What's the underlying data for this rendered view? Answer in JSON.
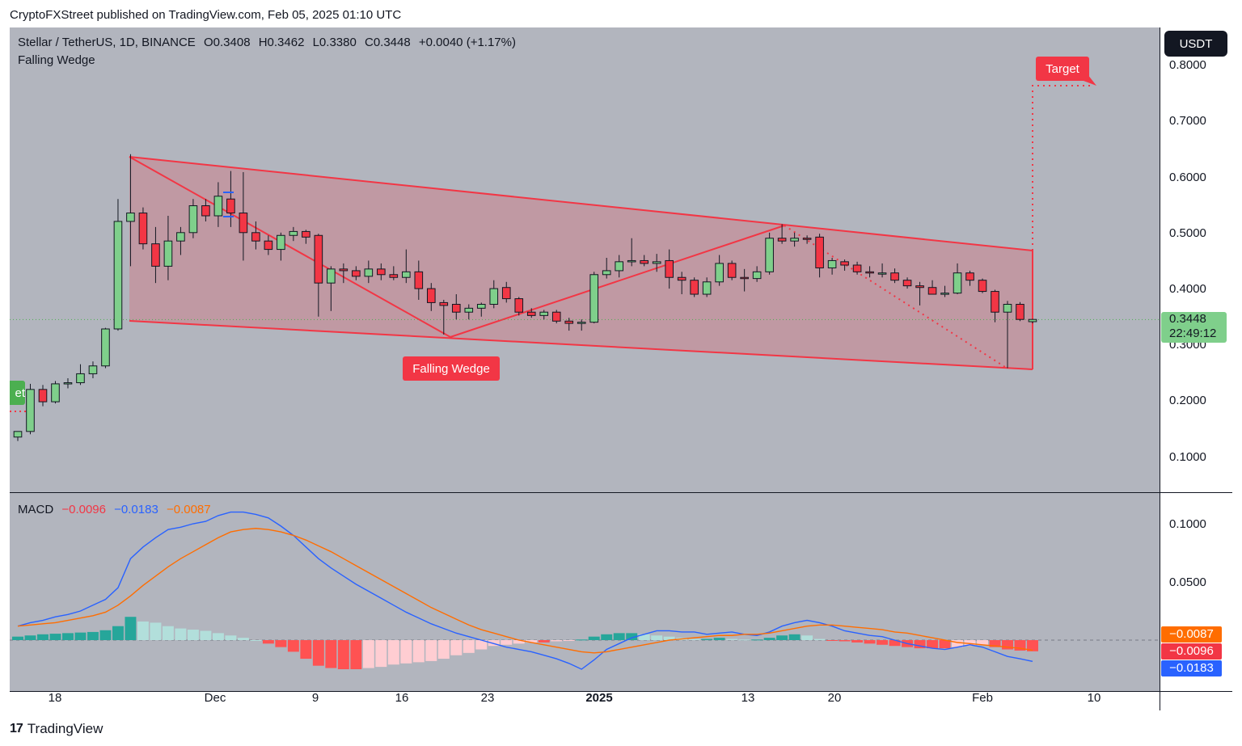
{
  "header": {
    "publisher_line": "CryptoFXStreet published on TradingView.com, Feb 05, 2025 01:10 UTC"
  },
  "symbol": {
    "name": "Stellar / TetherUS, 1D, BINANCE",
    "open": "O0.3408",
    "high": "H0.3462",
    "low": "L0.3380",
    "close": "C0.3448",
    "change": "+0.0040 (+1.17%)"
  },
  "pattern_title": "Falling Wedge",
  "currency": "USDT",
  "price_axis": [
    "0.8000",
    "0.7000",
    "0.6000",
    "0.5000",
    "0.4000",
    "0.3000",
    "0.2000",
    "0.1000"
  ],
  "last_price": {
    "value": "0.3448",
    "countdown": "22:49:12"
  },
  "labels": {
    "target": "Target",
    "wedge": "Falling Wedge",
    "left_cut": "et"
  },
  "macd": {
    "title": "MACD",
    "histogram": "−0.0096",
    "macd_line": "−0.0183",
    "signal": "−0.0087",
    "axis": [
      "0.1000",
      "0.0500"
    ],
    "badges": {
      "signal": "−0.0087",
      "histogram": "−0.0096",
      "macd_line": "−0.0183"
    }
  },
  "time_axis": [
    {
      "label": "18",
      "bold": false
    },
    {
      "label": "Dec",
      "bold": false
    },
    {
      "label": "9",
      "bold": false
    },
    {
      "label": "16",
      "bold": false
    },
    {
      "label": "23",
      "bold": false
    },
    {
      "label": "2025",
      "bold": true
    },
    {
      "label": "13",
      "bold": false
    },
    {
      "label": "20",
      "bold": false
    },
    {
      "label": "Feb",
      "bold": false
    },
    {
      "label": "10",
      "bold": false
    }
  ],
  "footer": {
    "brand": "TradingView",
    "logo": "17"
  },
  "colors": {
    "bg": "#b2b5be",
    "up": "#7fcf8b",
    "down": "#f23645",
    "wedge": "#f23645",
    "macd": "#2962ff",
    "signal": "#ff6d00",
    "hist_up_strong": "#26a69a",
    "hist_up_weak": "#b2dfdb",
    "hist_down_strong": "#ff5252",
    "hist_down_weak": "#ffcdd2"
  },
  "chart_data": {
    "type": "candlestick",
    "title": "Stellar / TetherUS, 1D, BINANCE",
    "y_axis": {
      "min": 0.1,
      "max": 0.8,
      "unit": "USDT"
    },
    "candles": [
      {
        "o": 0.135,
        "h": 0.145,
        "l": 0.128,
        "c": 0.145
      },
      {
        "o": 0.145,
        "h": 0.23,
        "l": 0.14,
        "c": 0.22
      },
      {
        "o": 0.22,
        "h": 0.228,
        "l": 0.19,
        "c": 0.198
      },
      {
        "o": 0.198,
        "h": 0.235,
        "l": 0.195,
        "c": 0.23
      },
      {
        "o": 0.23,
        "h": 0.24,
        "l": 0.222,
        "c": 0.232
      },
      {
        "o": 0.232,
        "h": 0.265,
        "l": 0.228,
        "c": 0.248
      },
      {
        "o": 0.248,
        "h": 0.27,
        "l": 0.24,
        "c": 0.262
      },
      {
        "o": 0.262,
        "h": 0.33,
        "l": 0.258,
        "c": 0.328
      },
      {
        "o": 0.328,
        "h": 0.56,
        "l": 0.325,
        "c": 0.52
      },
      {
        "o": 0.52,
        "h": 0.64,
        "l": 0.44,
        "c": 0.535
      },
      {
        "o": 0.535,
        "h": 0.545,
        "l": 0.47,
        "c": 0.48
      },
      {
        "o": 0.48,
        "h": 0.51,
        "l": 0.41,
        "c": 0.44
      },
      {
        "o": 0.44,
        "h": 0.53,
        "l": 0.415,
        "c": 0.485
      },
      {
        "o": 0.485,
        "h": 0.51,
        "l": 0.46,
        "c": 0.5
      },
      {
        "o": 0.5,
        "h": 0.56,
        "l": 0.49,
        "c": 0.548
      },
      {
        "o": 0.548,
        "h": 0.56,
        "l": 0.52,
        "c": 0.53
      },
      {
        "o": 0.53,
        "h": 0.59,
        "l": 0.51,
        "c": 0.565
      },
      {
        "o": 0.56,
        "h": 0.61,
        "l": 0.51,
        "c": 0.535
      },
      {
        "o": 0.535,
        "h": 0.608,
        "l": 0.45,
        "c": 0.5
      },
      {
        "o": 0.5,
        "h": 0.52,
        "l": 0.47,
        "c": 0.485
      },
      {
        "o": 0.485,
        "h": 0.495,
        "l": 0.46,
        "c": 0.47
      },
      {
        "o": 0.47,
        "h": 0.5,
        "l": 0.45,
        "c": 0.495
      },
      {
        "o": 0.495,
        "h": 0.51,
        "l": 0.485,
        "c": 0.502
      },
      {
        "o": 0.502,
        "h": 0.505,
        "l": 0.48,
        "c": 0.492
      },
      {
        "o": 0.495,
        "h": 0.498,
        "l": 0.35,
        "c": 0.41
      },
      {
        "o": 0.41,
        "h": 0.44,
        "l": 0.36,
        "c": 0.435
      },
      {
        "o": 0.435,
        "h": 0.445,
        "l": 0.41,
        "c": 0.432
      },
      {
        "o": 0.432,
        "h": 0.44,
        "l": 0.415,
        "c": 0.422
      },
      {
        "o": 0.422,
        "h": 0.45,
        "l": 0.41,
        "c": 0.435
      },
      {
        "o": 0.435,
        "h": 0.445,
        "l": 0.415,
        "c": 0.425
      },
      {
        "o": 0.425,
        "h": 0.44,
        "l": 0.415,
        "c": 0.42
      },
      {
        "o": 0.42,
        "h": 0.47,
        "l": 0.41,
        "c": 0.43
      },
      {
        "o": 0.43,
        "h": 0.45,
        "l": 0.38,
        "c": 0.4
      },
      {
        "o": 0.4,
        "h": 0.41,
        "l": 0.36,
        "c": 0.375
      },
      {
        "o": 0.375,
        "h": 0.38,
        "l": 0.318,
        "c": 0.37
      },
      {
        "o": 0.372,
        "h": 0.39,
        "l": 0.345,
        "c": 0.358
      },
      {
        "o": 0.358,
        "h": 0.372,
        "l": 0.345,
        "c": 0.365
      },
      {
        "o": 0.365,
        "h": 0.375,
        "l": 0.35,
        "c": 0.372
      },
      {
        "o": 0.372,
        "h": 0.415,
        "l": 0.365,
        "c": 0.4
      },
      {
        "o": 0.402,
        "h": 0.412,
        "l": 0.375,
        "c": 0.382
      },
      {
        "o": 0.382,
        "h": 0.385,
        "l": 0.352,
        "c": 0.358
      },
      {
        "o": 0.358,
        "h": 0.365,
        "l": 0.348,
        "c": 0.352
      },
      {
        "o": 0.352,
        "h": 0.362,
        "l": 0.345,
        "c": 0.358
      },
      {
        "o": 0.358,
        "h": 0.362,
        "l": 0.338,
        "c": 0.342
      },
      {
        "o": 0.342,
        "h": 0.348,
        "l": 0.325,
        "c": 0.338
      },
      {
        "o": 0.338,
        "h": 0.345,
        "l": 0.325,
        "c": 0.34
      },
      {
        "o": 0.34,
        "h": 0.43,
        "l": 0.338,
        "c": 0.425
      },
      {
        "o": 0.425,
        "h": 0.455,
        "l": 0.418,
        "c": 0.432
      },
      {
        "o": 0.432,
        "h": 0.46,
        "l": 0.42,
        "c": 0.448
      },
      {
        "o": 0.448,
        "h": 0.49,
        "l": 0.44,
        "c": 0.45
      },
      {
        "o": 0.45,
        "h": 0.46,
        "l": 0.44,
        "c": 0.445
      },
      {
        "o": 0.445,
        "h": 0.462,
        "l": 0.43,
        "c": 0.448
      },
      {
        "o": 0.45,
        "h": 0.47,
        "l": 0.4,
        "c": 0.42
      },
      {
        "o": 0.42,
        "h": 0.43,
        "l": 0.39,
        "c": 0.415
      },
      {
        "o": 0.415,
        "h": 0.42,
        "l": 0.385,
        "c": 0.39
      },
      {
        "o": 0.39,
        "h": 0.42,
        "l": 0.385,
        "c": 0.412
      },
      {
        "o": 0.412,
        "h": 0.46,
        "l": 0.405,
        "c": 0.445
      },
      {
        "o": 0.445,
        "h": 0.45,
        "l": 0.415,
        "c": 0.42
      },
      {
        "o": 0.42,
        "h": 0.435,
        "l": 0.395,
        "c": 0.418
      },
      {
        "o": 0.418,
        "h": 0.44,
        "l": 0.412,
        "c": 0.43
      },
      {
        "o": 0.43,
        "h": 0.5,
        "l": 0.425,
        "c": 0.49
      },
      {
        "o": 0.49,
        "h": 0.515,
        "l": 0.48,
        "c": 0.485
      },
      {
        "o": 0.485,
        "h": 0.5,
        "l": 0.475,
        "c": 0.49
      },
      {
        "o": 0.49,
        "h": 0.495,
        "l": 0.48,
        "c": 0.488
      },
      {
        "o": 0.492,
        "h": 0.498,
        "l": 0.42,
        "c": 0.437
      },
      {
        "o": 0.437,
        "h": 0.455,
        "l": 0.425,
        "c": 0.45
      },
      {
        "o": 0.448,
        "h": 0.452,
        "l": 0.432,
        "c": 0.442
      },
      {
        "o": 0.442,
        "h": 0.448,
        "l": 0.425,
        "c": 0.43
      },
      {
        "o": 0.43,
        "h": 0.44,
        "l": 0.42,
        "c": 0.428
      },
      {
        "o": 0.428,
        "h": 0.445,
        "l": 0.42,
        "c": 0.428
      },
      {
        "o": 0.428,
        "h": 0.436,
        "l": 0.41,
        "c": 0.415
      },
      {
        "o": 0.415,
        "h": 0.42,
        "l": 0.4,
        "c": 0.405
      },
      {
        "o": 0.405,
        "h": 0.412,
        "l": 0.37,
        "c": 0.402
      },
      {
        "o": 0.402,
        "h": 0.415,
        "l": 0.39,
        "c": 0.39
      },
      {
        "o": 0.39,
        "h": 0.405,
        "l": 0.385,
        "c": 0.392
      },
      {
        "o": 0.392,
        "h": 0.445,
        "l": 0.39,
        "c": 0.428
      },
      {
        "o": 0.428,
        "h": 0.432,
        "l": 0.405,
        "c": 0.415
      },
      {
        "o": 0.415,
        "h": 0.418,
        "l": 0.392,
        "c": 0.395
      },
      {
        "o": 0.395,
        "h": 0.398,
        "l": 0.34,
        "c": 0.358
      },
      {
        "o": 0.358,
        "h": 0.378,
        "l": 0.258,
        "c": 0.372
      },
      {
        "o": 0.372,
        "h": 0.376,
        "l": 0.342,
        "c": 0.345
      },
      {
        "o": 0.341,
        "h": 0.346,
        "l": 0.338,
        "c": 0.345
      }
    ],
    "macd_histogram": [
      0.003,
      0.004,
      0.005,
      0.0055,
      0.006,
      0.0065,
      0.007,
      0.0085,
      0.012,
      0.02,
      0.016,
      0.015,
      0.012,
      0.01,
      0.009,
      0.008,
      0.006,
      0.004,
      0.002,
      0,
      -0.003,
      -0.006,
      -0.01,
      -0.016,
      -0.022,
      -0.024,
      -0.025,
      -0.025,
      -0.024,
      -0.023,
      -0.021,
      -0.02,
      -0.019,
      -0.018,
      -0.016,
      -0.013,
      -0.011,
      -0.008,
      -0.005,
      -0.004,
      -0.003,
      -0.002,
      -0.002,
      -0.001,
      -0.0005,
      0.0005,
      0.003,
      0.005,
      0.006,
      0.006,
      0.005,
      0.004,
      0.003,
      0.002,
      0.001,
      0.001,
      0.002,
      0.001,
      0.0005,
      0.0005,
      0.002,
      0.004,
      0.005,
      0.004,
      0.001,
      -0.0005,
      -0.001,
      -0.002,
      -0.003,
      -0.004,
      -0.005,
      -0.006,
      -0.007,
      -0.007,
      -0.007,
      -0.006,
      -0.005,
      -0.004,
      -0.006,
      -0.008,
      -0.009,
      -0.0096
    ],
    "macd_line": [
      0.012,
      0.015,
      0.017,
      0.02,
      0.022,
      0.025,
      0.03,
      0.035,
      0.045,
      0.07,
      0.08,
      0.088,
      0.095,
      0.097,
      0.1,
      0.102,
      0.107,
      0.11,
      0.11,
      0.108,
      0.105,
      0.098,
      0.09,
      0.08,
      0.07,
      0.062,
      0.055,
      0.048,
      0.042,
      0.036,
      0.03,
      0.024,
      0.019,
      0.014,
      0.01,
      0.006,
      0.003,
      0,
      -0.003,
      -0.006,
      -0.008,
      -0.01,
      -0.013,
      -0.016,
      -0.02,
      -0.025,
      -0.017,
      -0.008,
      -0.003,
      0.002,
      0.005,
      0.008,
      0.008,
      0.007,
      0.007,
      0.005,
      0.006,
      0.007,
      0.005,
      0.004,
      0.007,
      0.012,
      0.015,
      0.017,
      0.015,
      0.012,
      0.008,
      0.006,
      0.004,
      0.003,
      0.0,
      -0.003,
      -0.005,
      -0.007,
      -0.008,
      -0.006,
      -0.004,
      -0.006,
      -0.01,
      -0.014,
      -0.016,
      -0.0183
    ],
    "signal_line": [
      0.012,
      0.013,
      0.014,
      0.015,
      0.017,
      0.019,
      0.021,
      0.024,
      0.03,
      0.038,
      0.047,
      0.055,
      0.063,
      0.07,
      0.076,
      0.082,
      0.088,
      0.093,
      0.095,
      0.096,
      0.095,
      0.093,
      0.09,
      0.086,
      0.081,
      0.076,
      0.07,
      0.064,
      0.058,
      0.052,
      0.046,
      0.04,
      0.034,
      0.028,
      0.023,
      0.018,
      0.013,
      0.009,
      0.006,
      0.003,
      0.0,
      -0.002,
      -0.004,
      -0.006,
      -0.008,
      -0.01,
      -0.011,
      -0.01,
      -0.008,
      -0.006,
      -0.004,
      -0.002,
      0.0,
      0.001,
      0.002,
      0.003,
      0.004,
      0.004,
      0.005,
      0.005,
      0.006,
      0.008,
      0.01,
      0.012,
      0.013,
      0.013,
      0.012,
      0.011,
      0.01,
      0.009,
      0.007,
      0.006,
      0.004,
      0.002,
      0.0,
      -0.002,
      -0.003,
      -0.004,
      -0.005,
      -0.006,
      -0.007,
      -0.0087
    ]
  }
}
